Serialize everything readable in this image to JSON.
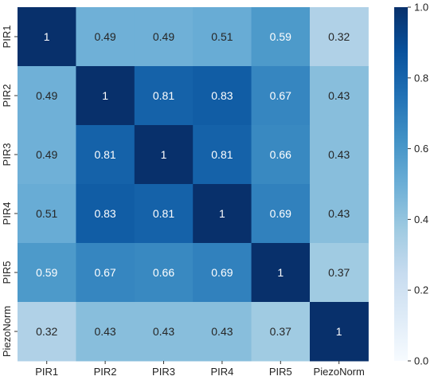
{
  "chart_data": {
    "type": "heatmap",
    "title": "",
    "xlabel": "",
    "ylabel": "",
    "x_categories": [
      "PIR1",
      "PIR2",
      "PIR3",
      "PIR4",
      "PIR5",
      "PiezoNorm"
    ],
    "y_categories": [
      "PIR1",
      "PIR2",
      "PIR3",
      "PIR4",
      "PIR5",
      "PiezoNorm"
    ],
    "values": [
      [
        1,
        0.49,
        0.49,
        0.51,
        0.59,
        0.32
      ],
      [
        0.49,
        1,
        0.81,
        0.83,
        0.67,
        0.43
      ],
      [
        0.49,
        0.81,
        1,
        0.81,
        0.66,
        0.43
      ],
      [
        0.51,
        0.83,
        0.81,
        1,
        0.69,
        0.43
      ],
      [
        0.59,
        0.67,
        0.66,
        0.69,
        1,
        0.37
      ],
      [
        0.32,
        0.43,
        0.43,
        0.43,
        0.37,
        1
      ]
    ],
    "cell_labels": [
      [
        "1",
        "0.49",
        "0.49",
        "0.51",
        "0.59",
        "0.32"
      ],
      [
        "0.49",
        "1",
        "0.81",
        "0.83",
        "0.67",
        "0.43"
      ],
      [
        "0.49",
        "0.81",
        "1",
        "0.81",
        "0.66",
        "0.43"
      ],
      [
        "0.51",
        "0.83",
        "0.81",
        "1",
        "0.69",
        "0.43"
      ],
      [
        "0.59",
        "0.67",
        "0.66",
        "0.69",
        "1",
        "0.37"
      ],
      [
        "0.32",
        "0.43",
        "0.43",
        "0.43",
        "0.37",
        "1"
      ]
    ],
    "colorscale": "Blues",
    "color_range": [
      0,
      1
    ],
    "colorbar": {
      "ticks": [
        0,
        0.2,
        0.4,
        0.6,
        0.8,
        1
      ],
      "tick_labels": [
        "0.0",
        "0.2",
        "0.4",
        "0.6",
        "0.8",
        "1.0"
      ],
      "placement": "right"
    },
    "grid": false
  }
}
